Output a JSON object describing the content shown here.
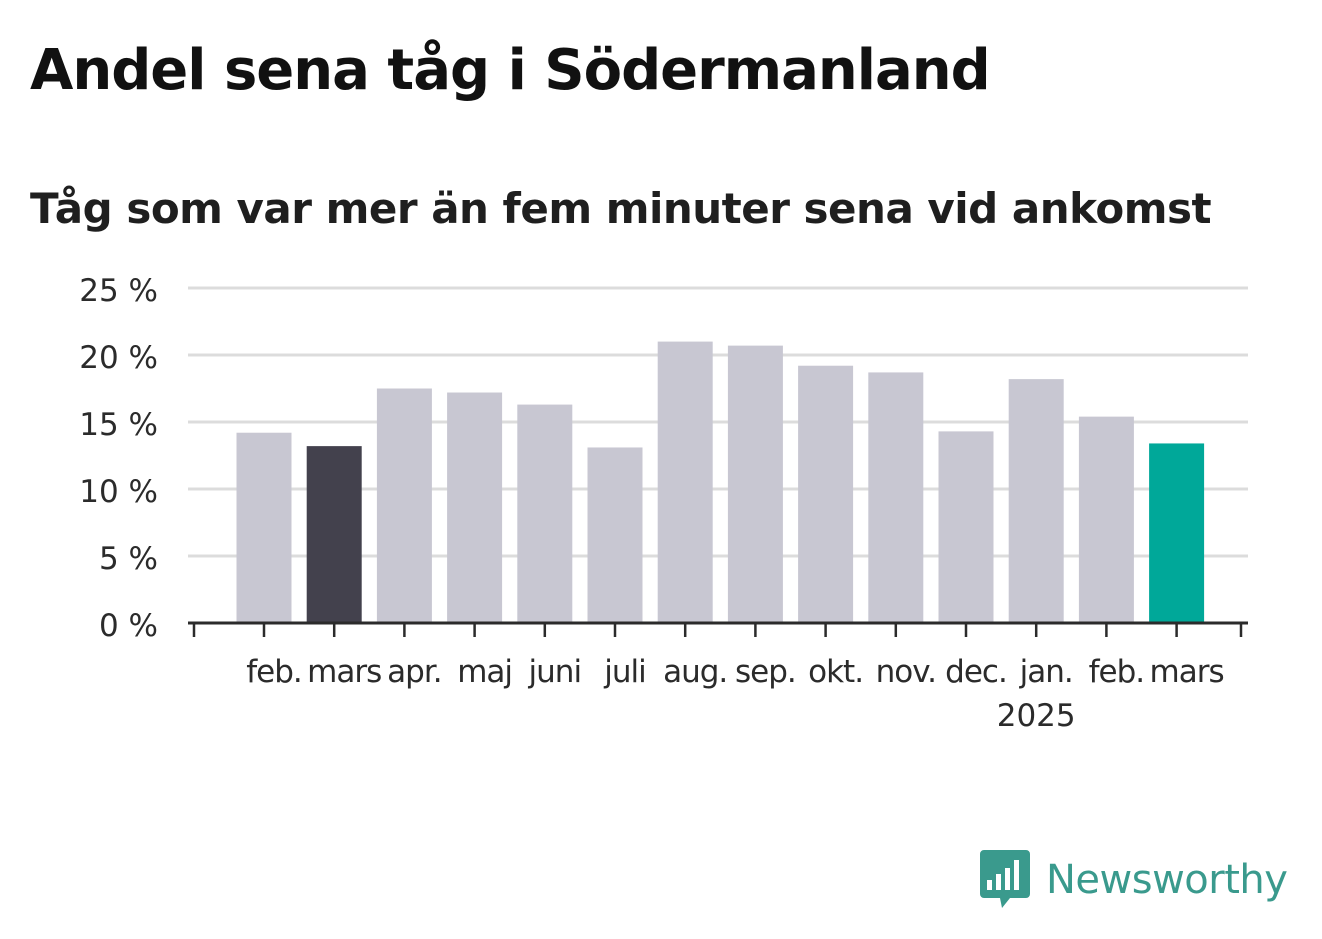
{
  "title": "Andel sena tåg i Södermanland",
  "subtitle": "Tåg som var mer än fem minuter sena vid ankomst",
  "logo": {
    "icon": "newsworthy-chart-icon",
    "text": "Newsworthy"
  },
  "colors": {
    "default_bar": "#c8c7d2",
    "highlight_previous": "#43414d",
    "highlight_current": "#00a899",
    "grid": "#dcdcdc",
    "axis": "#2b2b2b",
    "logo": "#3a9a8d"
  },
  "chart_data": {
    "type": "bar",
    "categories": [
      "feb.",
      "mars",
      "apr.",
      "maj",
      "juni",
      "juli",
      "aug.",
      "sep.",
      "okt.",
      "nov.",
      "dec.",
      "jan.",
      "feb.",
      "mars"
    ],
    "year_labels": [
      "",
      "",
      "",
      "",
      "",
      "",
      "",
      "",
      "",
      "",
      "",
      "2025",
      "",
      ""
    ],
    "values": [
      14.2,
      13.2,
      17.5,
      17.2,
      16.3,
      13.1,
      21.0,
      20.7,
      19.2,
      18.7,
      14.3,
      18.2,
      15.4,
      13.4
    ],
    "bar_colors": [
      "#c8c7d2",
      "#43414d",
      "#c8c7d2",
      "#c8c7d2",
      "#c8c7d2",
      "#c8c7d2",
      "#c8c7d2",
      "#c8c7d2",
      "#c8c7d2",
      "#c8c7d2",
      "#c8c7d2",
      "#c8c7d2",
      "#c8c7d2",
      "#00a899"
    ],
    "yticks": [
      0,
      5,
      10,
      15,
      20,
      25
    ],
    "ytick_labels": [
      "0 %",
      "5 %",
      "10 %",
      "15 %",
      "20 %",
      "25 %"
    ],
    "ylim": [
      0,
      25
    ],
    "grid": true,
    "xlabel": "",
    "ylabel": ""
  }
}
